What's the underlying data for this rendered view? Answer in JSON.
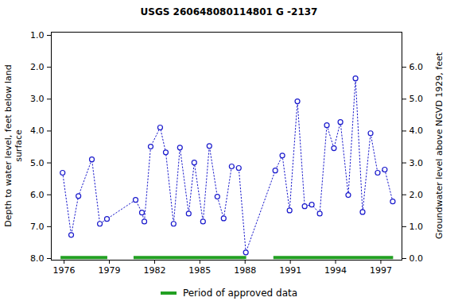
{
  "chart_data": {
    "type": "line",
    "title": "USGS 260648080114801 G  -2137",
    "ylabel": [
      "Depth to water level, feet below land",
      "surface"
    ],
    "y2label": "Groundwater level above NGVD 1929, feet",
    "color": "#1a1acc",
    "marker": "circle",
    "line_style": "dotted",
    "grid": false,
    "x": [
      1975.9,
      1976.47,
      1976.95,
      1977.84,
      1978.37,
      1978.84,
      1980.74,
      1981.16,
      1981.32,
      1981.74,
      1982.37,
      1982.74,
      1983.26,
      1983.68,
      1984.26,
      1984.63,
      1985.21,
      1985.63,
      1986.16,
      1986.58,
      1987.11,
      1987.58,
      1988.05,
      1990.0,
      1990.47,
      1990.95,
      1991.47,
      1991.95,
      1992.42,
      1992.95,
      1993.42,
      1993.89,
      1994.32,
      1994.84,
      1995.32,
      1995.79,
      1996.32,
      1996.79,
      1997.26,
      1997.79
    ],
    "values": [
      5.31,
      7.26,
      6.04,
      4.89,
      6.91,
      6.76,
      6.16,
      6.56,
      6.84,
      4.49,
      3.89,
      4.67,
      6.91,
      4.52,
      6.59,
      4.99,
      6.84,
      4.47,
      6.06,
      6.74,
      5.11,
      5.16,
      7.81,
      5.24,
      4.77,
      6.49,
      3.07,
      6.36,
      6.31,
      6.59,
      3.82,
      4.54,
      3.72,
      6.01,
      2.35,
      6.54,
      4.07,
      5.31,
      5.21,
      6.21
    ],
    "xlim": [
      1975.15,
      1998.4
    ],
    "xticks": [
      1976,
      1979,
      1982,
      1985,
      1988,
      1991,
      1994,
      1997
    ],
    "ylim": [
      0.9,
      8.05
    ],
    "yticks": [
      {
        "value": 1,
        "label": "1.0"
      },
      {
        "value": 2,
        "label": "2.0"
      },
      {
        "value": 3,
        "label": "3.0"
      },
      {
        "value": 4,
        "label": "4.0"
      },
      {
        "value": 5,
        "label": "5.0"
      },
      {
        "value": 6,
        "label": "6.0"
      },
      {
        "value": 7,
        "label": "7.0"
      },
      {
        "value": 8,
        "label": "8.0"
      }
    ],
    "y2lim": [
      7.1,
      -0.05
    ],
    "y2ticks": [
      {
        "value": 0,
        "label": "0.0"
      },
      {
        "value": 1,
        "label": "1.0"
      },
      {
        "value": 2,
        "label": "2.0"
      },
      {
        "value": 3,
        "label": "3.0"
      },
      {
        "value": 4,
        "label": "4.0"
      },
      {
        "value": 5,
        "label": "5.0"
      },
      {
        "value": 6,
        "label": "6.0"
      }
    ],
    "approved_periods": {
      "name": "Period of approved data",
      "color": "#22a022",
      "depth": 7.97,
      "ranges": [
        [
          1975.79,
          1978.89
        ],
        [
          1980.63,
          1988.1
        ],
        [
          1989.9,
          1997.84
        ]
      ]
    }
  }
}
